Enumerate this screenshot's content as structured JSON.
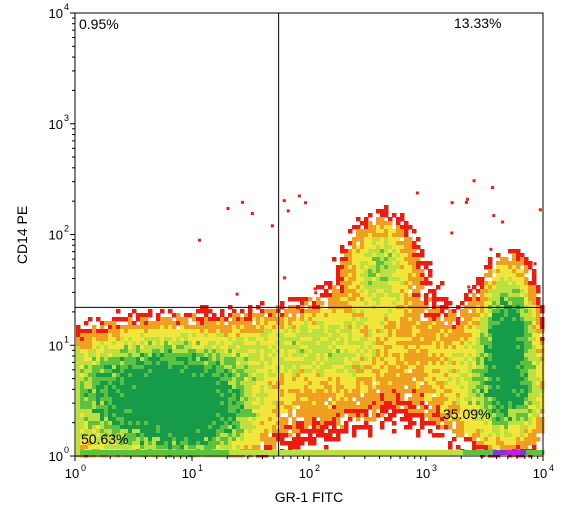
{
  "chart_data": {
    "type": "scatter",
    "subtype": "flow-cytometry density plot with quadrant gate",
    "xlabel": "GR-1 FITC",
    "ylabel": "CD14 PE",
    "xscale": "log",
    "yscale": "log",
    "xlim": [
      1,
      10000
    ],
    "ylim": [
      1,
      10000
    ],
    "x_ticks": [
      {
        "base": "10",
        "exp": "0",
        "value": 1
      },
      {
        "base": "10",
        "exp": "1",
        "value": 10
      },
      {
        "base": "10",
        "exp": "2",
        "value": 100
      },
      {
        "base": "10",
        "exp": "3",
        "value": 1000
      },
      {
        "base": "10",
        "exp": "4",
        "value": 10000
      }
    ],
    "y_ticks": [
      {
        "base": "10",
        "exp": "0",
        "value": 1
      },
      {
        "base": "10",
        "exp": "1",
        "value": 10
      },
      {
        "base": "10",
        "exp": "2",
        "value": 100
      },
      {
        "base": "10",
        "exp": "3",
        "value": 1000
      },
      {
        "base": "10",
        "exp": "4",
        "value": 10000
      }
    ],
    "gate": {
      "x": 55,
      "y": 22
    },
    "quadrants": [
      {
        "label": "0.95%",
        "position": "top-left",
        "value": 0.95
      },
      {
        "label": "13.33%",
        "position": "top-right",
        "value": 13.33
      },
      {
        "label": "50.63%",
        "position": "bottom-left",
        "value": 50.63
      },
      {
        "label": "35.09%",
        "position": "bottom-right",
        "value": 35.09
      }
    ],
    "populations": [
      {
        "name": "GR-1 low / CD14 low",
        "x_center": 4,
        "y_center": 4,
        "peak_density": "high"
      },
      {
        "name": "GR-1 high / CD14 low-mid",
        "x_center": 5500,
        "y_center": 12,
        "peak_density": "high"
      },
      {
        "name": "GR-1 mid / CD14 mid",
        "x_center": 450,
        "y_center": 70,
        "peak_density": "medium"
      }
    ],
    "density_colors": [
      "#ee1c10",
      "#f0a020",
      "#f2e63a",
      "#bce040",
      "#5ec040",
      "#159b4a",
      "#7a3cd0",
      "#c020e0"
    ],
    "grid": false
  }
}
